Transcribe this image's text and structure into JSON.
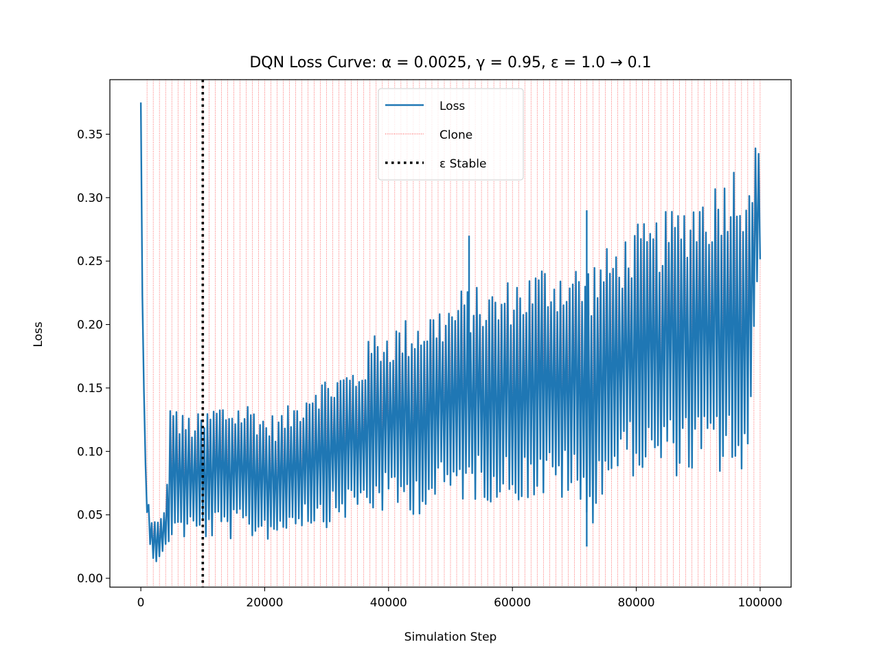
{
  "chart_data": {
    "type": "line",
    "title": "DQN Loss Curve: α = 0.0025, γ = 0.95, ε = 1.0 → 0.1",
    "xlabel": "Simulation Step",
    "ylabel": "Loss",
    "xlim": [
      -5000,
      105000
    ],
    "ylim": [
      -0.007,
      0.393
    ],
    "xticks": [
      0,
      20000,
      40000,
      60000,
      80000,
      100000
    ],
    "xtick_labels": [
      "0",
      "20000",
      "40000",
      "60000",
      "80000",
      "100000"
    ],
    "yticks": [
      0.0,
      0.05,
      0.1,
      0.15,
      0.2,
      0.25,
      0.3,
      0.35
    ],
    "ytick_labels": [
      "0.00",
      "0.05",
      "0.10",
      "0.15",
      "0.20",
      "0.25",
      "0.30",
      "0.35"
    ],
    "grid": false,
    "legend": {
      "placement": "upper center",
      "entries": [
        {
          "label": "Loss",
          "color": "#1f77b4",
          "style": "solid"
        },
        {
          "label": "Clone",
          "color": "#ff0000",
          "style": "dotted-thin"
        },
        {
          "label": "ε Stable",
          "color": "#000000",
          "style": "dotted-thick"
        }
      ]
    },
    "clone_lines": {
      "start": 1000,
      "end": 100000,
      "interval": 1000,
      "color": "#ff0000"
    },
    "epsilon_stable_x": 10000,
    "series": [
      {
        "name": "Loss",
        "color": "#1f77b4",
        "x": [
          0,
          200,
          500,
          800,
          1000,
          1500,
          2000,
          2500,
          3000,
          3500,
          4000,
          5000,
          6000,
          8000,
          10000,
          12000,
          15000,
          18000,
          20000,
          22000,
          25000,
          28000,
          30000,
          35000,
          38000,
          40000,
          45000,
          50000,
          52000,
          55000,
          58000,
          60000,
          62000,
          65000,
          68000,
          70000,
          72000,
          75000,
          78000,
          80000,
          82000,
          85000,
          88000,
          90000,
          92000,
          95000,
          98000,
          100000
        ],
        "upper": [
          0.375,
          0.3,
          0.16,
          0.1,
          0.07,
          0.05,
          0.048,
          0.045,
          0.047,
          0.05,
          0.06,
          0.16,
          0.13,
          0.13,
          0.13,
          0.14,
          0.14,
          0.14,
          0.13,
          0.13,
          0.14,
          0.16,
          0.16,
          0.17,
          0.2,
          0.2,
          0.21,
          0.22,
          0.23,
          0.23,
          0.23,
          0.24,
          0.24,
          0.25,
          0.25,
          0.25,
          0.25,
          0.26,
          0.27,
          0.28,
          0.28,
          0.29,
          0.3,
          0.31,
          0.31,
          0.33,
          0.33,
          0.35
        ],
        "lower": [
          0.21,
          0.15,
          0.09,
          0.05,
          0.04,
          0.025,
          0.015,
          0.012,
          0.012,
          0.015,
          0.02,
          0.03,
          0.03,
          0.03,
          0.03,
          0.03,
          0.03,
          0.03,
          0.03,
          0.03,
          0.04,
          0.04,
          0.04,
          0.05,
          0.05,
          0.05,
          0.05,
          0.06,
          0.06,
          0.06,
          0.06,
          0.06,
          0.06,
          0.06,
          0.06,
          0.06,
          0.03,
          0.07,
          0.08,
          0.08,
          0.08,
          0.08,
          0.08,
          0.08,
          0.08,
          0.08,
          0.07,
          0.25
        ],
        "spikes": [
          {
            "x": 53000,
            "y": 0.27
          },
          {
            "x": 72000,
            "y": 0.29
          },
          {
            "x": 72000,
            "y": 0.025
          }
        ]
      }
    ]
  }
}
